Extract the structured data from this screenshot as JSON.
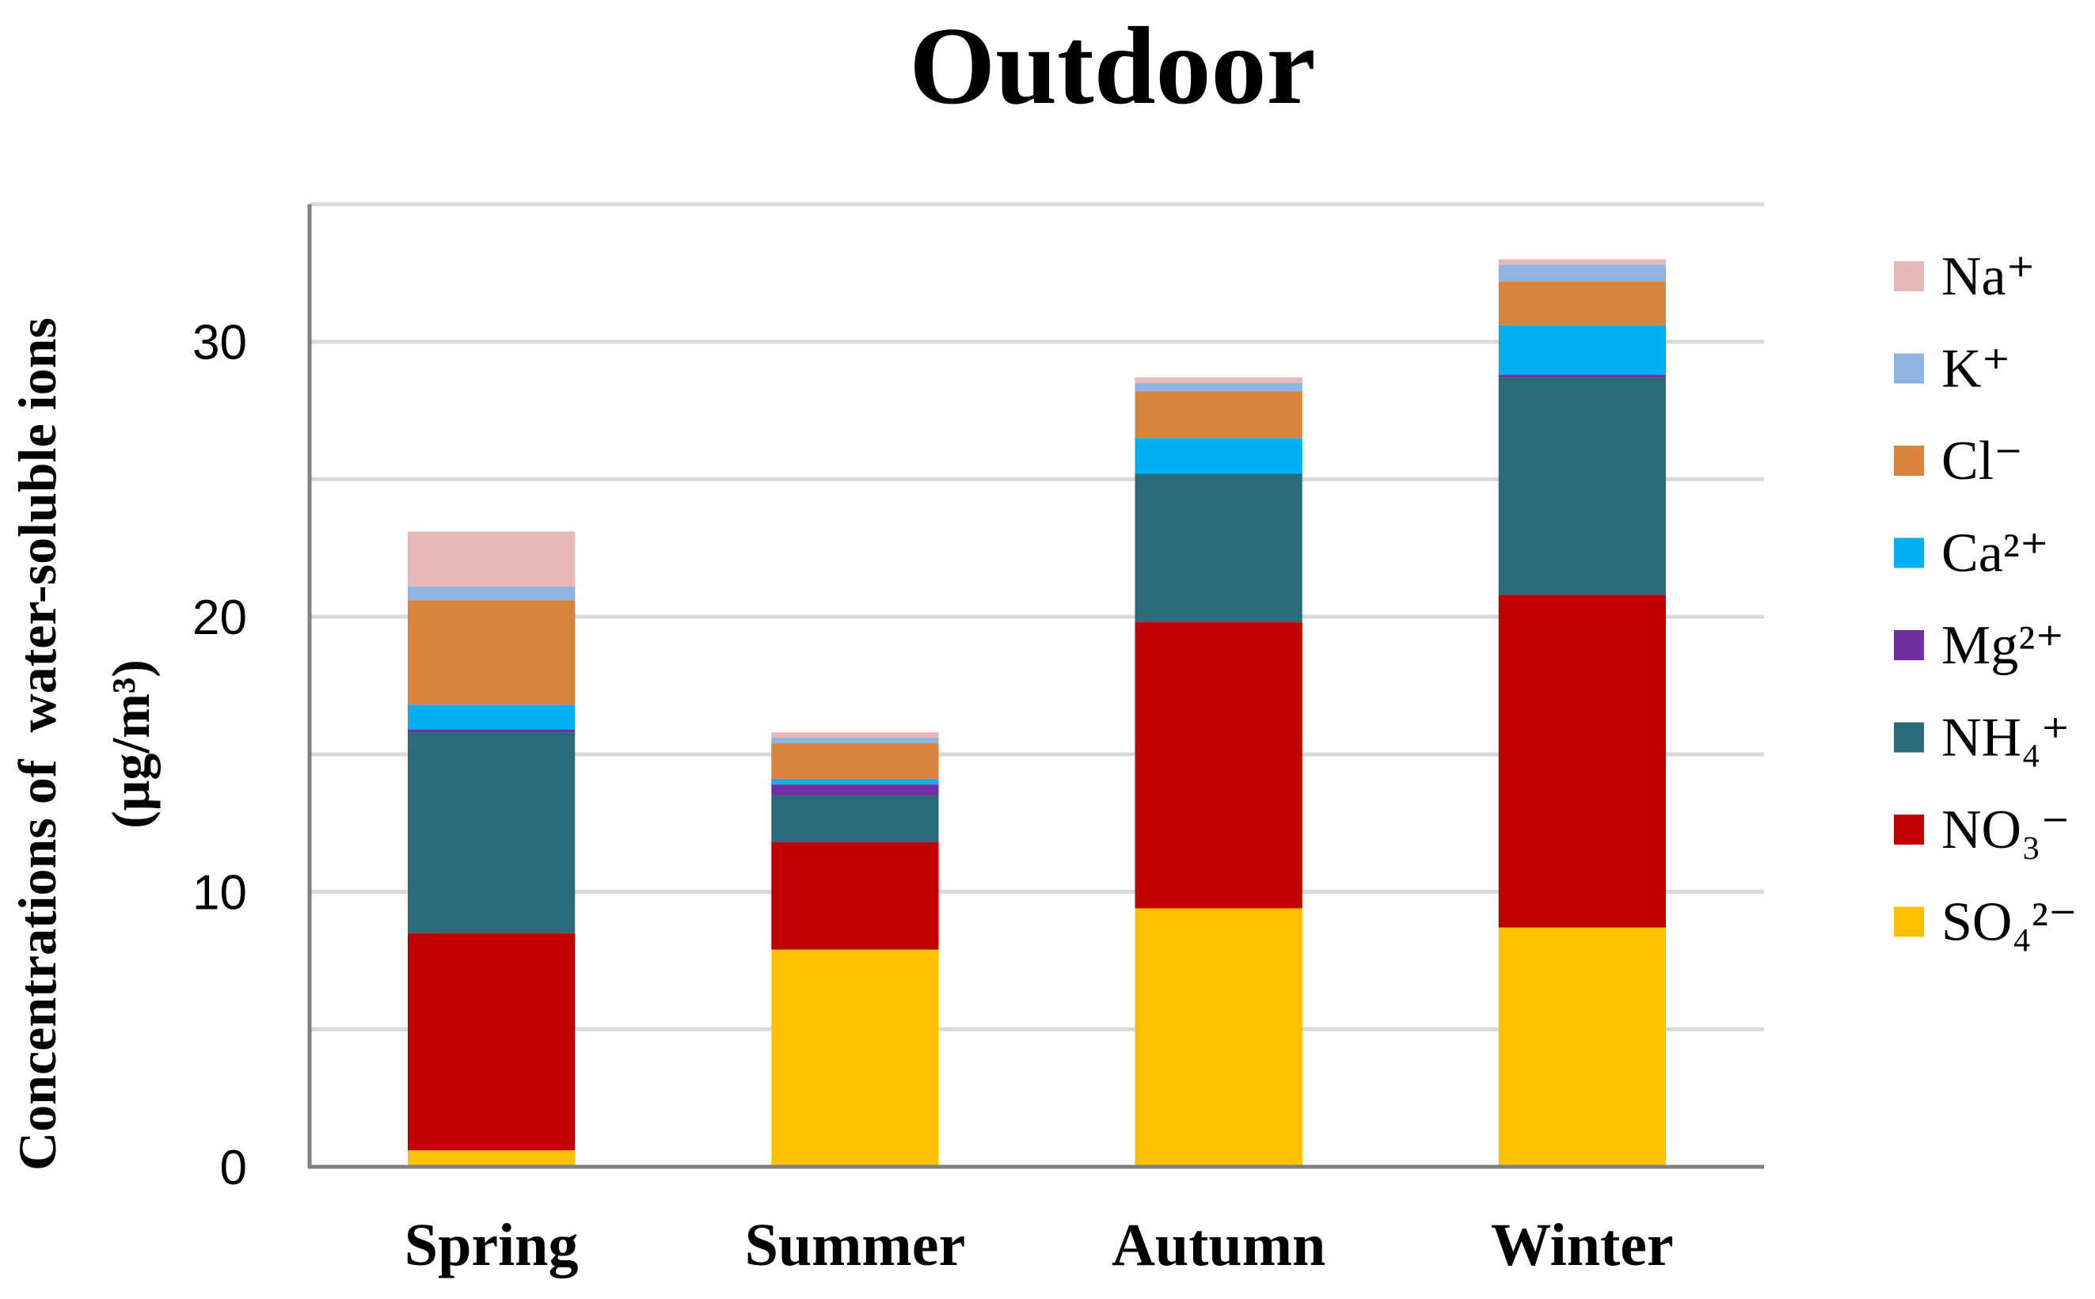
{
  "chart_data": {
    "type": "bar",
    "stacked": true,
    "title": "Outdoor",
    "ylabel_lines": [
      "Concentrations of  water-soluble ions",
      "(μg/m³)"
    ],
    "xlabel": "",
    "categories": [
      "Spring",
      "Summer",
      "Autumn",
      "Winter"
    ],
    "ylim": [
      0,
      35
    ],
    "yticks": [
      0,
      10,
      20,
      30
    ],
    "grid_y": true,
    "legend_position": "right",
    "series": [
      {
        "name": "SO₄²⁻",
        "color": "#FFC000",
        "values": [
          0.6,
          7.9,
          9.4,
          8.7
        ]
      },
      {
        "name": "NO₃⁻",
        "color": "#C00000",
        "values": [
          7.9,
          3.9,
          10.4,
          12.1
        ]
      },
      {
        "name": "NH₄⁺",
        "color": "#2A6B77",
        "values": [
          7.3,
          1.7,
          5.4,
          7.9
        ]
      },
      {
        "name": "Mg²⁺",
        "color": "#7030A0",
        "values": [
          0.1,
          0.4,
          0.0,
          0.1
        ]
      },
      {
        "name": "Ca²⁺",
        "color": "#00B0F0",
        "values": [
          0.9,
          0.2,
          1.3,
          1.8
        ]
      },
      {
        "name": "Cl⁻",
        "color": "#D9843E",
        "values": [
          3.8,
          1.3,
          1.7,
          1.6
        ]
      },
      {
        "name": "K⁺",
        "color": "#8EB4E3",
        "values": [
          0.5,
          0.2,
          0.3,
          0.6
        ]
      },
      {
        "name": "Na⁺",
        "color": "#E6B9B8",
        "values": [
          2.0,
          0.2,
          0.2,
          0.2
        ]
      }
    ]
  }
}
